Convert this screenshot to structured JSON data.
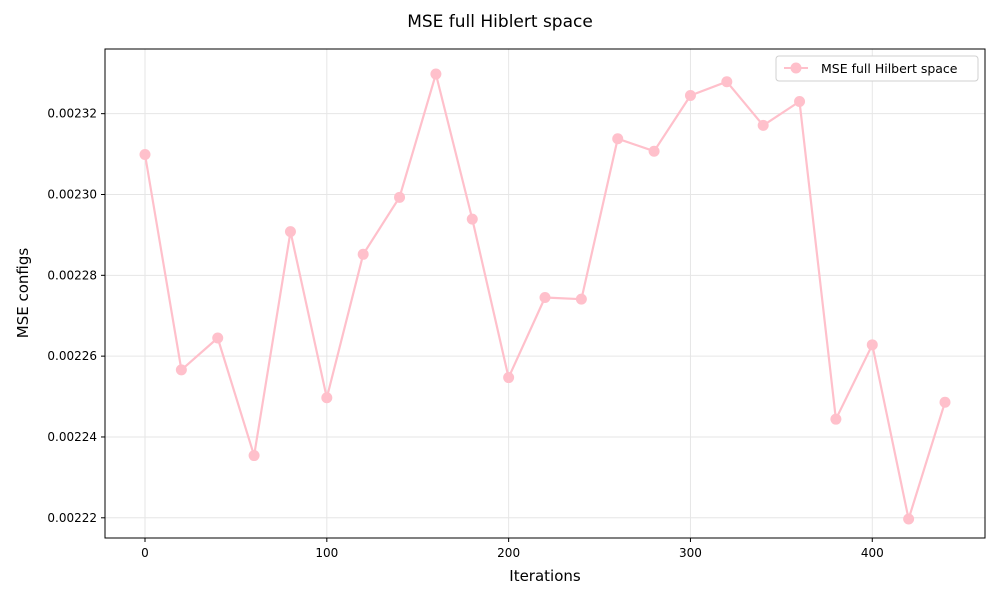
{
  "chart_data": {
    "type": "line",
    "title": "MSE full Hiblert space",
    "xlabel": "Iterations",
    "ylabel": "MSE configs",
    "xlim": [
      -22,
      462
    ],
    "ylim": [
      0.002215,
      0.002336
    ],
    "x_ticks": [
      0,
      100,
      200,
      300,
      400
    ],
    "y_ticks": [
      0.00222,
      0.00224,
      0.00226,
      0.00228,
      0.0023,
      0.00232
    ],
    "y_tick_labels": [
      "0.00222",
      "0.00224",
      "0.00226",
      "0.00228",
      "0.00230",
      "0.00232"
    ],
    "grid": true,
    "legend_position": "top-right",
    "series": [
      {
        "name": "MSE full Hilbert space",
        "color": "#ffc0cb",
        "marker": "circle",
        "x": [
          0,
          20,
          40,
          60,
          80,
          100,
          120,
          140,
          160,
          180,
          200,
          220,
          240,
          260,
          280,
          300,
          320,
          340,
          360,
          380,
          400,
          420,
          440
        ],
        "y": [
          0.0023099,
          0.0022566,
          0.0022645,
          0.0022354,
          0.0022908,
          0.0022497,
          0.0022852,
          0.0022993,
          0.0023298,
          0.0022939,
          0.0022547,
          0.0022745,
          0.0022741,
          0.0023138,
          0.0023107,
          0.0023245,
          0.0023279,
          0.0023171,
          0.002323,
          0.0022444,
          0.0022628,
          0.0022197,
          0.0022486
        ]
      }
    ]
  }
}
